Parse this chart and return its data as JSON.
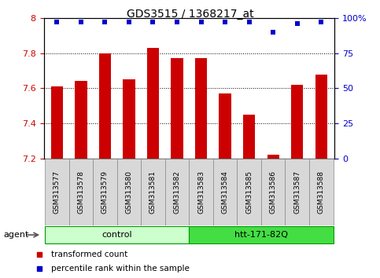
{
  "title": "GDS3515 / 1368217_at",
  "samples": [
    "GSM313577",
    "GSM313578",
    "GSM313579",
    "GSM313580",
    "GSM313581",
    "GSM313582",
    "GSM313583",
    "GSM313584",
    "GSM313585",
    "GSM313586",
    "GSM313587",
    "GSM313588"
  ],
  "bar_values": [
    7.61,
    7.64,
    7.8,
    7.65,
    7.83,
    7.77,
    7.77,
    7.57,
    7.45,
    7.22,
    7.62,
    7.68
  ],
  "percentile_values": [
    97,
    97,
    97,
    97,
    97,
    97,
    97,
    97,
    97,
    90,
    96,
    97
  ],
  "bar_color": "#cc0000",
  "percentile_color": "#0000cc",
  "ylim_left": [
    7.2,
    8.0
  ],
  "ylim_right": [
    0,
    100
  ],
  "yticks_left": [
    7.2,
    7.4,
    7.6,
    7.8,
    8.0
  ],
  "ytick_labels_left": [
    "7.2",
    "7.4",
    "7.6",
    "7.8",
    "8"
  ],
  "yticks_right": [
    0,
    25,
    50,
    75,
    100
  ],
  "ytick_labels_right": [
    "0",
    "25",
    "50",
    "75",
    "100%"
  ],
  "groups": [
    {
      "label": "control",
      "start": 0,
      "end": 6,
      "color": "#ccffcc",
      "edge": "#009900"
    },
    {
      "label": "htt-171-82Q",
      "start": 6,
      "end": 12,
      "color": "#44dd44",
      "edge": "#009900"
    }
  ],
  "agent_label": "agent",
  "legend_items": [
    {
      "label": "transformed count",
      "color": "#cc0000"
    },
    {
      "label": "percentile rank within the sample",
      "color": "#0000cc"
    }
  ],
  "bar_width": 0.5,
  "background_color": "#ffffff",
  "plot_bg_color": "#ffffff",
  "title_fontsize": 10,
  "tick_fontsize": 8,
  "sample_fontsize": 6.5,
  "group_fontsize": 8,
  "legend_fontsize": 7.5,
  "agent_fontsize": 8
}
